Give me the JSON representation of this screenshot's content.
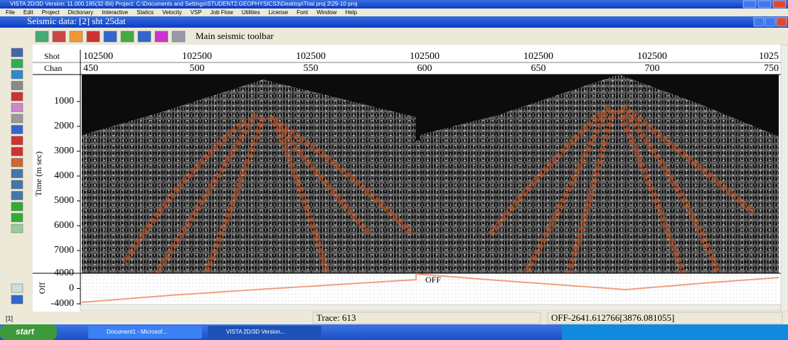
{
  "window": {
    "title": "VISTA 2D/3D Version: 11.000.185(32-Bit) Project: C:\\Documents and Settings\\STUDENT2.GEOPHYSICS3\\Desktop\\Trial proj 2\\29-10 proj"
  },
  "menu": [
    "File",
    "Edit",
    "Project",
    "Dictionary",
    "Interactive",
    "Statics",
    "Velocity",
    "VSP",
    "Job Flow",
    "Utilities",
    "License",
    "Font",
    "Window",
    "Help"
  ],
  "subwindow": {
    "title": "Seismic data: [2] sht 25dat",
    "toolbar_label": "Main seismic toolbar"
  },
  "header": {
    "shot_label": "Shot",
    "chan_label": "Chan",
    "shots": [
      "102500",
      "102500",
      "102500",
      "102500",
      "102500",
      "102500",
      "1025"
    ],
    "chans": [
      "450",
      "500",
      "550",
      "600",
      "650",
      "700",
      "750"
    ]
  },
  "time_axis": {
    "label": "Time (m sec)",
    "ylim": [
      0,
      8000
    ],
    "ticks": [
      1000,
      2000,
      3000,
      4000,
      5000,
      6000,
      7000
    ]
  },
  "offset_panel": {
    "label": "Off",
    "ylim": [
      -4000,
      4000
    ],
    "ticks": [
      4000,
      0,
      -4000
    ],
    "curve_label": "OFF"
  },
  "status": {
    "pane": "[1]",
    "trace": "Trace: 613",
    "readout": "OFF-2641.612766[3876.081055]"
  },
  "taskbar": {
    "start": "start",
    "tasks": [
      "Document1 - Microsof...",
      "VISTA 2D/3D Version..."
    ]
  }
}
